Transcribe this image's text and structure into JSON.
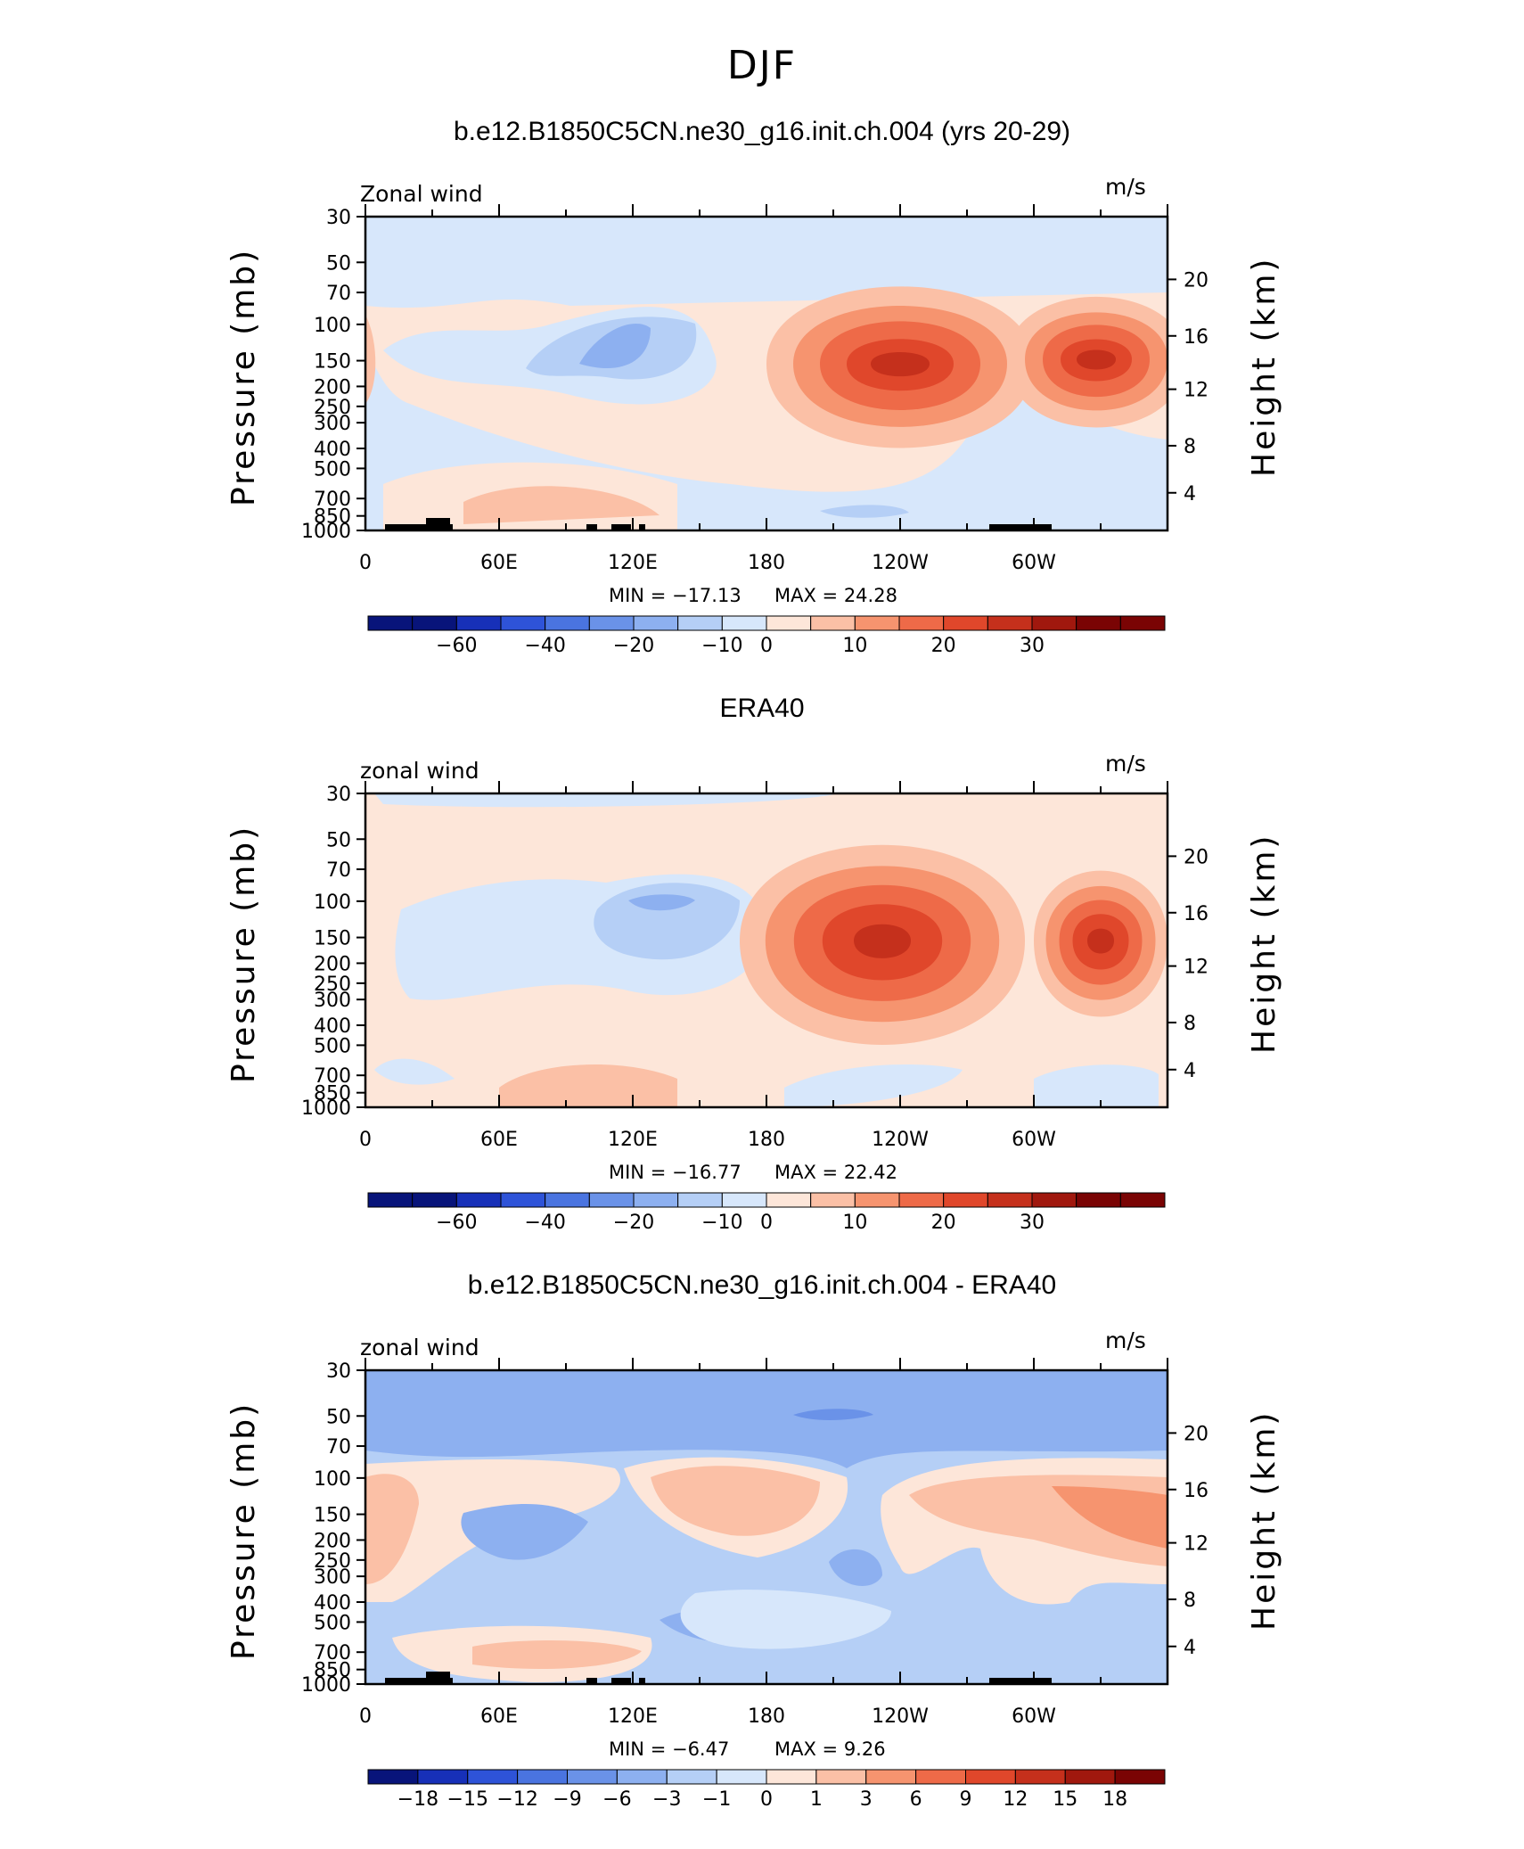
{
  "page_title": "DJF",
  "colors": {
    "contour_positive": [
      "#fde6d9",
      "#fbc0a6",
      "#f6946f",
      "#ee6a48",
      "#e0472b",
      "#c5301c",
      "#a0180e",
      "#7a0404"
    ],
    "contour_negative": [
      "#d7e7fb",
      "#b5cff6",
      "#8db0f0",
      "#6a92e8",
      "#4a74e0",
      "#2e53d8",
      "#1730b8",
      "#08147a"
    ],
    "topography": "#000000"
  },
  "panels": [
    {
      "title": "b.e12.B1850C5CN.ne30_g16.init.ch.004 (yrs 20-29)",
      "left_label": "Zonal wind",
      "units": "m/s",
      "ylabel": "Pressure (mb)",
      "ylabel_right": "Height (km)",
      "min_label": "MIN = −17.13",
      "max_label": "MAX = 24.28",
      "colorbar_labels": [
        "−60",
        "−40",
        "−20",
        "−10",
        "0",
        "10",
        "20",
        "30"
      ]
    },
    {
      "title": "ERA40",
      "left_label": "zonal wind",
      "units": "m/s",
      "ylabel": "Pressure (mb)",
      "ylabel_right": "Height (km)",
      "min_label": "MIN = −16.77",
      "max_label": "MAX = 22.42",
      "colorbar_labels": [
        "−60",
        "−40",
        "−20",
        "−10",
        "0",
        "10",
        "20",
        "30"
      ]
    },
    {
      "title": "b.e12.B1850C5CN.ne30_g16.init.ch.004 - ERA40",
      "left_label": "zonal wind",
      "units": "m/s",
      "ylabel": "Pressure (mb)",
      "ylabel_right": "Height (km)",
      "min_label": "MIN = −6.47",
      "max_label": "MAX = 9.26",
      "colorbar_labels": [
        "−18",
        "−15",
        "−12",
        "−9",
        "−6",
        "−3",
        "−1",
        "0",
        "1",
        "3",
        "6",
        "9",
        "12",
        "15",
        "18"
      ]
    }
  ],
  "chart_data": [
    {
      "type": "heatmap",
      "title": "b.e12.B1850C5CN.ne30_g16.init.ch.004 (yrs 20-29)",
      "variable": "Zonal wind",
      "units": "m/s",
      "xlabel": "",
      "ylabel": "Pressure (mb)",
      "ylabel_right": "Height (km)",
      "x_ticks": [
        "0",
        "60E",
        "120E",
        "180",
        "120W",
        "60W"
      ],
      "x_range": [
        0,
        360
      ],
      "y_ticks": [
        "30",
        "50",
        "70",
        "100",
        "150",
        "200",
        "250",
        "300",
        "400",
        "500",
        "700",
        "850",
        "1000"
      ],
      "y_range": [
        1000,
        30
      ],
      "y_right_ticks": [
        "20",
        "16",
        "12",
        "8",
        "4"
      ],
      "min": -17.13,
      "max": 24.28,
      "levels": [
        -70,
        -60,
        -50,
        -40,
        -30,
        -20,
        -15,
        -10,
        -5,
        0,
        5,
        10,
        15,
        20,
        25,
        30,
        35
      ],
      "features": [
        {
          "kind": "max",
          "lon": 240,
          "pressure": 150,
          "value": 24.28
        },
        {
          "kind": "max",
          "lon": 330,
          "pressure": 150,
          "value": 20
        },
        {
          "kind": "min",
          "lon": 110,
          "pressure": 150,
          "value": -17.13
        }
      ]
    },
    {
      "type": "heatmap",
      "title": "ERA40",
      "variable": "zonal wind",
      "units": "m/s",
      "xlabel": "",
      "ylabel": "Pressure (mb)",
      "ylabel_right": "Height (km)",
      "x_ticks": [
        "0",
        "60E",
        "120E",
        "180",
        "120W",
        "60W"
      ],
      "x_range": [
        0,
        360
      ],
      "y_ticks": [
        "30",
        "50",
        "70",
        "100",
        "150",
        "200",
        "250",
        "300",
        "400",
        "500",
        "700",
        "850",
        "1000"
      ],
      "y_range": [
        1000,
        30
      ],
      "y_right_ticks": [
        "20",
        "16",
        "12",
        "8",
        "4"
      ],
      "min": -16.77,
      "max": 22.42,
      "levels": [
        -70,
        -60,
        -50,
        -40,
        -30,
        -20,
        -15,
        -10,
        -5,
        0,
        5,
        10,
        15,
        20,
        25,
        30,
        35
      ],
      "features": [
        {
          "kind": "max",
          "lon": 235,
          "pressure": 150,
          "value": 22.42
        },
        {
          "kind": "max",
          "lon": 330,
          "pressure": 150,
          "value": 17
        },
        {
          "kind": "min",
          "lon": 130,
          "pressure": 110,
          "value": -16.77
        }
      ]
    },
    {
      "type": "heatmap",
      "title": "b.e12.B1850C5CN.ne30_g16.init.ch.004 - ERA40",
      "variable": "zonal wind",
      "units": "m/s",
      "xlabel": "",
      "ylabel": "Pressure (mb)",
      "ylabel_right": "Height (km)",
      "x_ticks": [
        "0",
        "60E",
        "120E",
        "180",
        "120W",
        "60W"
      ],
      "x_range": [
        0,
        360
      ],
      "y_ticks": [
        "30",
        "50",
        "70",
        "100",
        "150",
        "200",
        "250",
        "300",
        "400",
        "500",
        "700",
        "850",
        "1000"
      ],
      "y_range": [
        1000,
        30
      ],
      "y_right_ticks": [
        "20",
        "16",
        "12",
        "8",
        "4"
      ],
      "min": -6.47,
      "max": 9.26,
      "levels": [
        -18,
        -15,
        -12,
        -9,
        -6,
        -3,
        -1,
        0,
        1,
        3,
        6,
        9,
        12,
        15,
        18
      ],
      "features": [
        {
          "kind": "max",
          "lon": 340,
          "pressure": 150,
          "value": 9.26
        },
        {
          "kind": "min",
          "lon": 215,
          "pressure": 50,
          "value": -6.47
        },
        {
          "kind": "max",
          "lon": 150,
          "pressure": 130,
          "value": 4
        }
      ]
    }
  ]
}
